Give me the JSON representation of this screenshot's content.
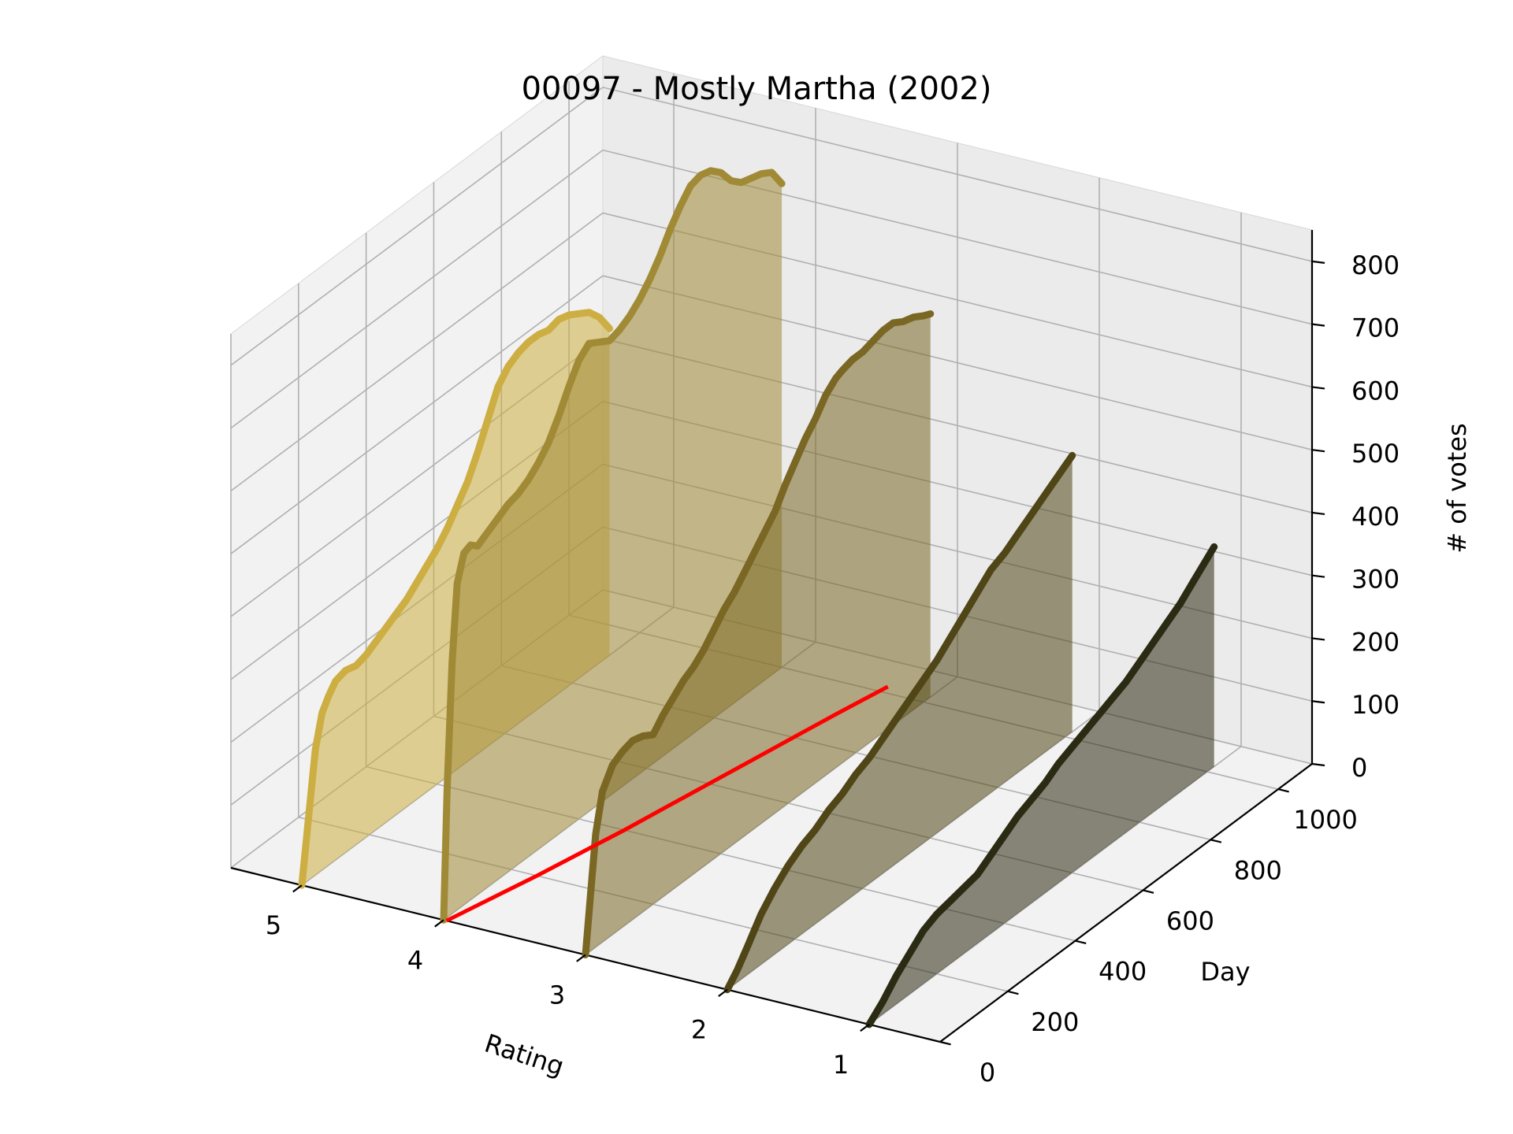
{
  "chart_data": {
    "type": "area",
    "projection": "3d",
    "title": "00097 - Mostly Martha (2002)",
    "xlabel": "Rating",
    "ylabel": "Day",
    "zlabel": "# of votes",
    "x_ticks": [
      "1",
      "2",
      "3",
      "4",
      "5"
    ],
    "y_ticks": [
      "0",
      "200",
      "400",
      "600",
      "800",
      "1000"
    ],
    "z_ticks": [
      "0",
      "100",
      "200",
      "300",
      "400",
      "500",
      "600",
      "700",
      "800"
    ],
    "xlim": [
      0.5,
      5.5
    ],
    "ylim": [
      0,
      1100
    ],
    "zlim": [
      0,
      850
    ],
    "grid": true,
    "series": [
      {
        "rating": 1,
        "color": "#2b2a12",
        "points": [
          [
            0,
            0
          ],
          [
            40,
            20
          ],
          [
            80,
            45
          ],
          [
            120,
            65
          ],
          [
            160,
            85
          ],
          [
            200,
            95
          ],
          [
            240,
            100
          ],
          [
            280,
            105
          ],
          [
            320,
            110
          ],
          [
            360,
            125
          ],
          [
            400,
            140
          ],
          [
            440,
            155
          ],
          [
            480,
            165
          ],
          [
            520,
            175
          ],
          [
            560,
            190
          ],
          [
            600,
            200
          ],
          [
            640,
            210
          ],
          [
            680,
            220
          ],
          [
            720,
            230
          ],
          [
            760,
            240
          ],
          [
            800,
            255
          ],
          [
            840,
            270
          ],
          [
            880,
            285
          ],
          [
            920,
            300
          ],
          [
            960,
            320
          ],
          [
            1000,
            340
          ],
          [
            1020,
            350
          ]
        ]
      },
      {
        "rating": 2,
        "color": "#4f4516",
        "points": [
          [
            0,
            0
          ],
          [
            30,
            20
          ],
          [
            60,
            45
          ],
          [
            100,
            80
          ],
          [
            140,
            105
          ],
          [
            180,
            125
          ],
          [
            220,
            140
          ],
          [
            260,
            150
          ],
          [
            300,
            165
          ],
          [
            340,
            175
          ],
          [
            380,
            190
          ],
          [
            420,
            200
          ],
          [
            460,
            215
          ],
          [
            500,
            230
          ],
          [
            540,
            245
          ],
          [
            580,
            260
          ],
          [
            620,
            275
          ],
          [
            660,
            295
          ],
          [
            700,
            315
          ],
          [
            740,
            335
          ],
          [
            780,
            355
          ],
          [
            820,
            365
          ],
          [
            860,
            380
          ],
          [
            900,
            395
          ],
          [
            940,
            410
          ],
          [
            980,
            425
          ],
          [
            1020,
            440
          ]
        ]
      },
      {
        "rating": 3,
        "color": "#7a6724",
        "points": [
          [
            0,
            0
          ],
          [
            15,
            90
          ],
          [
            30,
            180
          ],
          [
            50,
            240
          ],
          [
            80,
            270
          ],
          [
            110,
            280
          ],
          [
            140,
            285
          ],
          [
            170,
            280
          ],
          [
            200,
            270
          ],
          [
            230,
            290
          ],
          [
            260,
            305
          ],
          [
            290,
            320
          ],
          [
            320,
            330
          ],
          [
            350,
            345
          ],
          [
            380,
            365
          ],
          [
            410,
            385
          ],
          [
            440,
            400
          ],
          [
            470,
            420
          ],
          [
            500,
            440
          ],
          [
            530,
            460
          ],
          [
            560,
            480
          ],
          [
            590,
            510
          ],
          [
            620,
            535
          ],
          [
            650,
            560
          ],
          [
            680,
            580
          ],
          [
            710,
            605
          ],
          [
            740,
            620
          ],
          [
            760,
            625
          ],
          [
            790,
            630
          ],
          [
            820,
            630
          ],
          [
            850,
            635
          ],
          [
            880,
            640
          ],
          [
            910,
            640
          ],
          [
            940,
            630
          ],
          [
            970,
            625
          ],
          [
            1000,
            615
          ],
          [
            1020,
            610
          ]
        ]
      },
      {
        "rating": 4,
        "color": "#a18a36",
        "points": [
          [
            0,
            0
          ],
          [
            10,
            200
          ],
          [
            25,
            400
          ],
          [
            40,
            520
          ],
          [
            60,
            560
          ],
          [
            80,
            565
          ],
          [
            100,
            555
          ],
          [
            130,
            565
          ],
          [
            160,
            575
          ],
          [
            190,
            585
          ],
          [
            220,
            590
          ],
          [
            250,
            600
          ],
          [
            280,
            615
          ],
          [
            310,
            635
          ],
          [
            340,
            665
          ],
          [
            370,
            700
          ],
          [
            400,
            730
          ],
          [
            430,
            745
          ],
          [
            460,
            735
          ],
          [
            490,
            725
          ],
          [
            520,
            730
          ],
          [
            550,
            740
          ],
          [
            580,
            755
          ],
          [
            610,
            775
          ],
          [
            640,
            800
          ],
          [
            670,
            830
          ],
          [
            700,
            855
          ],
          [
            730,
            875
          ],
          [
            760,
            880
          ],
          [
            790,
            875
          ],
          [
            820,
            860
          ],
          [
            850,
            835
          ],
          [
            880,
            820
          ],
          [
            910,
            815
          ],
          [
            940,
            810
          ],
          [
            970,
            800
          ],
          [
            1000,
            770
          ]
        ]
      },
      {
        "rating": 5,
        "color": "#cdae42",
        "points": [
          [
            0,
            0
          ],
          [
            20,
            100
          ],
          [
            40,
            200
          ],
          [
            60,
            250
          ],
          [
            80,
            270
          ],
          [
            100,
            285
          ],
          [
            130,
            290
          ],
          [
            160,
            285
          ],
          [
            190,
            290
          ],
          [
            220,
            300
          ],
          [
            250,
            310
          ],
          [
            280,
            320
          ],
          [
            310,
            330
          ],
          [
            340,
            345
          ],
          [
            370,
            360
          ],
          [
            400,
            375
          ],
          [
            430,
            395
          ],
          [
            460,
            420
          ],
          [
            490,
            445
          ],
          [
            520,
            480
          ],
          [
            550,
            520
          ],
          [
            580,
            560
          ],
          [
            610,
            580
          ],
          [
            640,
            590
          ],
          [
            670,
            595
          ],
          [
            700,
            595
          ],
          [
            730,
            590
          ],
          [
            760,
            595
          ],
          [
            790,
            590
          ],
          [
            820,
            580
          ],
          [
            850,
            570
          ],
          [
            880,
            550
          ],
          [
            910,
            520
          ]
        ]
      }
    ],
    "mean_line": {
      "color": "#ff0000",
      "points": [
        [
          0,
          3.98
        ],
        [
          100,
          3.9
        ],
        [
          200,
          3.82
        ],
        [
          300,
          3.75
        ],
        [
          400,
          3.68
        ],
        [
          500,
          3.62
        ],
        [
          600,
          3.56
        ],
        [
          700,
          3.5
        ],
        [
          800,
          3.44
        ],
        [
          900,
          3.38
        ],
        [
          1020,
          3.3
        ]
      ]
    }
  }
}
